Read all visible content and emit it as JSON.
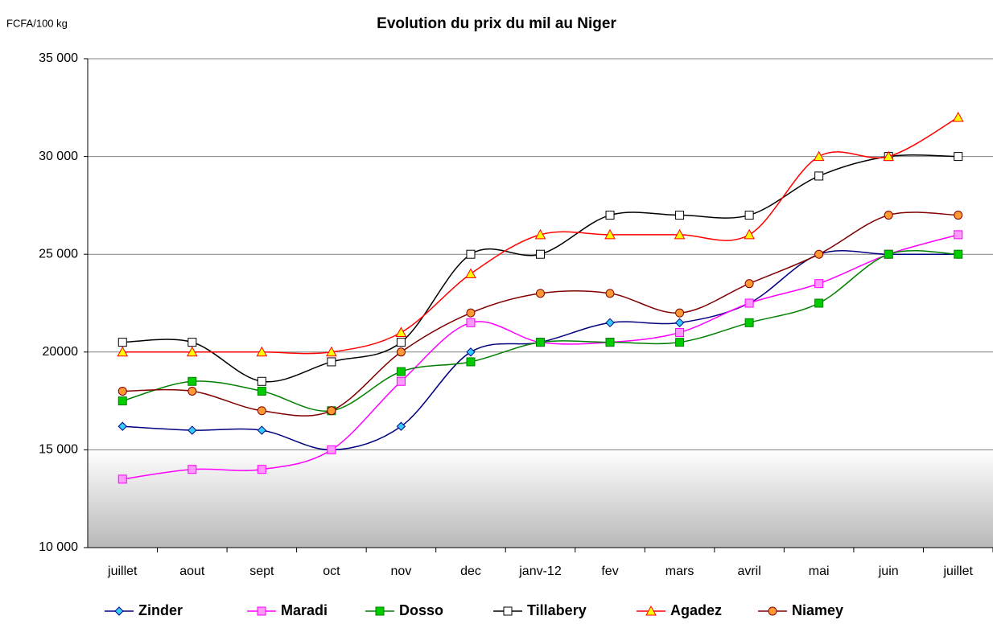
{
  "chart_data": {
    "type": "line",
    "title": "Evolution du prix du mil au Niger",
    "y_label": "FCFA/100 kg",
    "categories": [
      "juillet",
      "aout",
      "sept",
      "oct",
      "nov",
      "dec",
      "janv-12",
      "fev",
      "mars",
      "avril",
      "mai",
      "juin",
      "juillet"
    ],
    "ylim": [
      10000,
      35000
    ],
    "yticks": [
      {
        "value": 10000,
        "label": "10 000"
      },
      {
        "value": 15000,
        "label": "15 000"
      },
      {
        "value": 20000,
        "label": "20000"
      },
      {
        "value": 25000,
        "label": "25 000"
      },
      {
        "value": 30000,
        "label": "30 000"
      },
      {
        "value": 35000,
        "label": "35 000"
      }
    ],
    "grid": true,
    "legend": "bottom",
    "smooth": true,
    "series": [
      {
        "name": "Zinder",
        "color": "#000080",
        "marker": "diamond",
        "marker_color": "#33ccff",
        "values": [
          16200,
          16000,
          16000,
          15000,
          16200,
          20000,
          20500,
          21500,
          21500,
          22500,
          25000,
          25000,
          25000
        ]
      },
      {
        "name": "Maradi",
        "color": "#ff00ff",
        "marker": "square",
        "marker_color": "#ff99ff",
        "values": [
          13500,
          14000,
          14000,
          15000,
          18500,
          21500,
          20500,
          20500,
          21000,
          22500,
          23500,
          25000,
          26000
        ]
      },
      {
        "name": "Dosso",
        "color": "#008000",
        "marker": "square",
        "marker_color": "#00cc00",
        "values": [
          17500,
          18500,
          18000,
          17000,
          19000,
          19500,
          20500,
          20500,
          20500,
          21500,
          22500,
          25000,
          25000
        ]
      },
      {
        "name": "Tillabery",
        "color": "#000000",
        "marker": "square",
        "marker_color": "#ffffff",
        "values": [
          20500,
          20500,
          18500,
          19500,
          20500,
          25000,
          25000,
          27000,
          27000,
          27000,
          29000,
          30000,
          30000
        ]
      },
      {
        "name": "Agadez",
        "color": "#ff0000",
        "marker": "triangle",
        "marker_color": "#ffff00",
        "values": [
          20000,
          20000,
          20000,
          20000,
          21000,
          24000,
          26000,
          26000,
          26000,
          26000,
          30000,
          30000,
          32000
        ]
      },
      {
        "name": "Niamey",
        "color": "#800000",
        "marker": "circle",
        "marker_color": "#ff9933",
        "values": [
          18000,
          18000,
          17000,
          17000,
          20000,
          22000,
          23000,
          23000,
          22000,
          23500,
          25000,
          27000,
          27000
        ]
      }
    ]
  }
}
